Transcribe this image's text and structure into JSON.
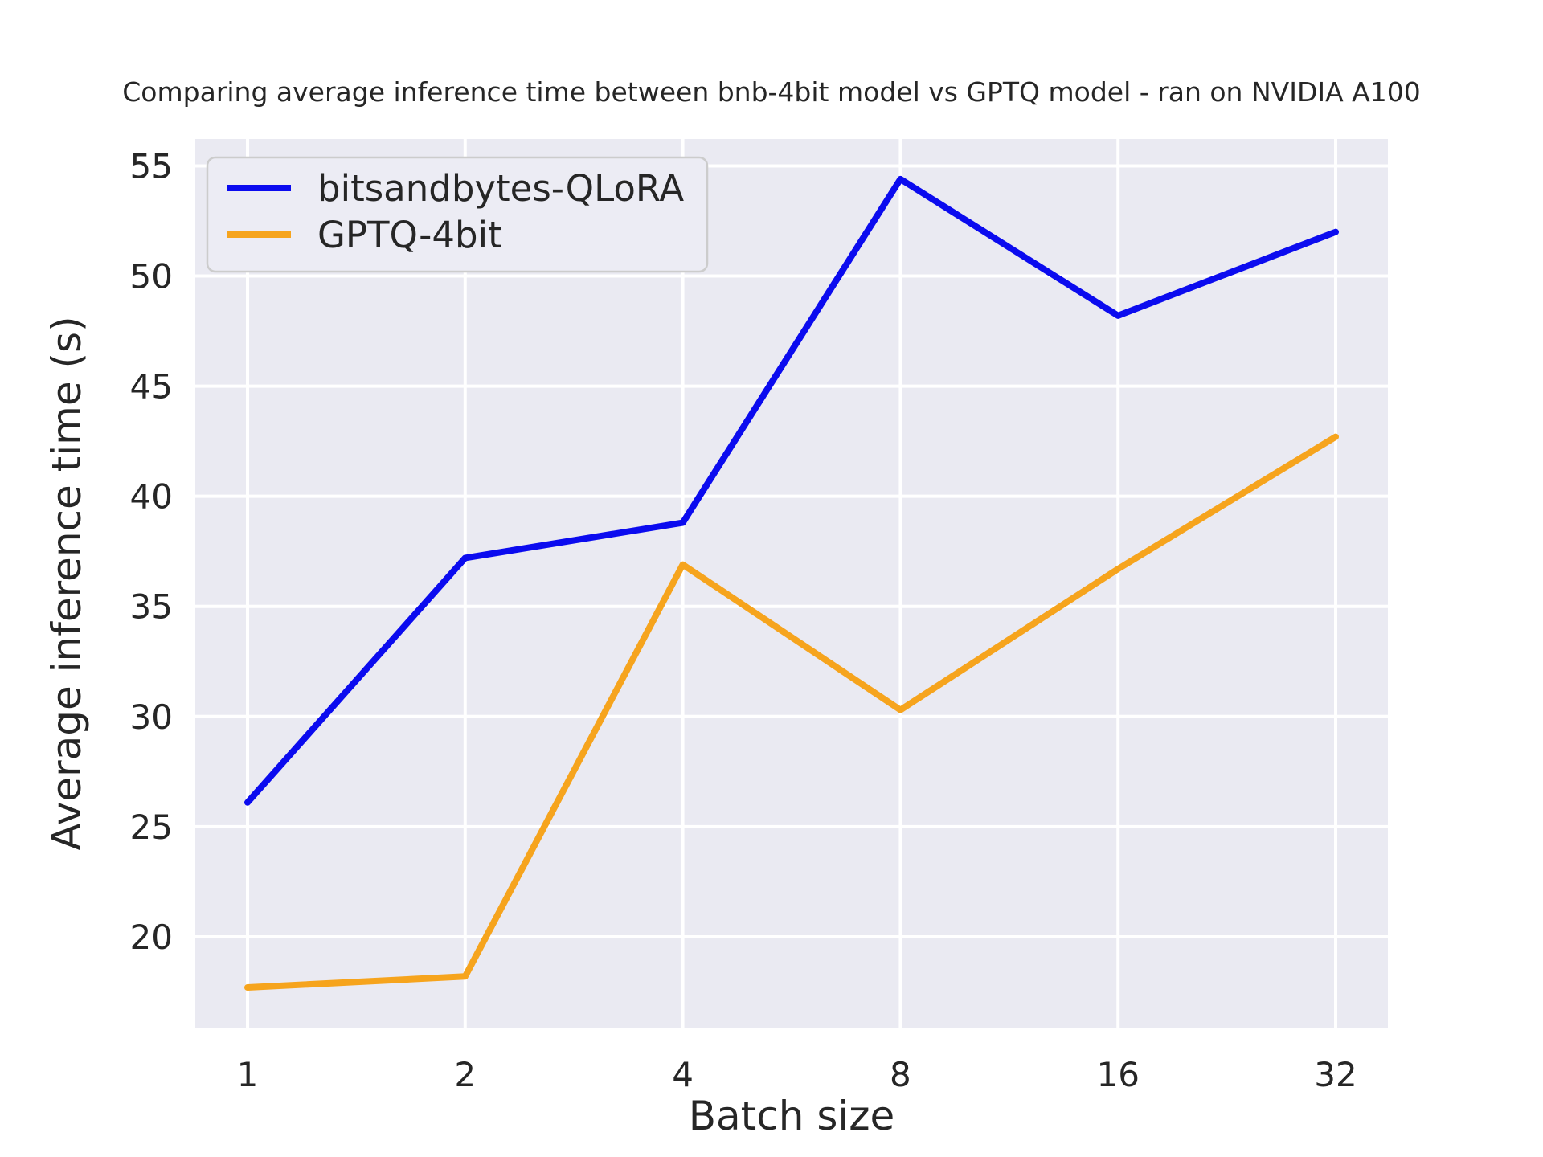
{
  "title": "Comparing average inference time between bnb-4bit model vs GPTQ model - ran on NVIDIA A100",
  "chart_data": {
    "type": "line",
    "categories": [
      "1",
      "2",
      "4",
      "8",
      "16",
      "32"
    ],
    "series": [
      {
        "name": "bitsandbytes-QLoRA",
        "color": "#0b0bef",
        "values": [
          26.1,
          37.2,
          38.8,
          54.4,
          48.2,
          52.0
        ]
      },
      {
        "name": "GPTQ-4bit",
        "color": "#f6a41d",
        "values": [
          17.7,
          18.2,
          36.9,
          30.3,
          36.7,
          42.7
        ]
      }
    ],
    "xlabel": "Batch size",
    "ylabel": "Average inference time (s)",
    "yticks": [
      20,
      25,
      30,
      35,
      40,
      45,
      50,
      55
    ],
    "ylim": [
      15.84,
      56.22
    ],
    "xlim_index": [
      -0.24,
      5.24
    ],
    "grid": true,
    "legend_position": "upper left",
    "plot_bg_color": "#eaeaf2",
    "grid_color": "#ffffff",
    "text_color": "#262626",
    "legend_bg_color": "#ececf4",
    "legend_border_color": "#cccccc"
  }
}
